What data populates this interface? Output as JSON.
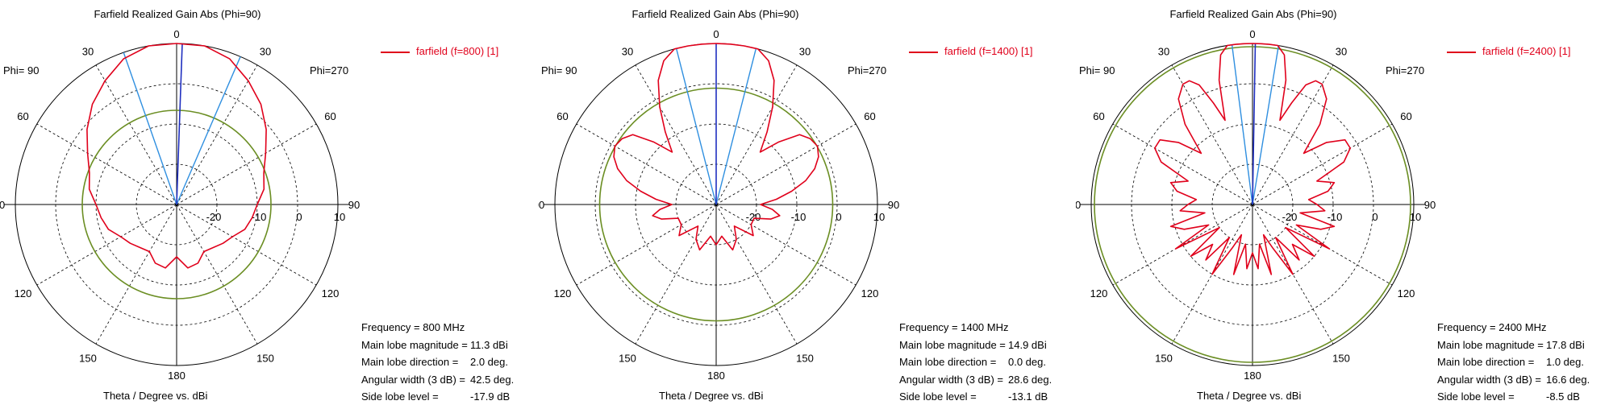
{
  "chart_data": [
    {
      "type": "polar",
      "title": "Farfield Realized Gain Abs (Phi=90)",
      "xlabel": "Theta / Degree vs. dBi",
      "phi_left": "Phi= 90",
      "phi_right": "Phi=270",
      "angle_labels": [
        "0",
        "30",
        "60",
        "90",
        "120",
        "150",
        "180"
      ],
      "radial_ticks": [
        -20,
        -10,
        0,
        10
      ],
      "radial_tick_labels": [
        "-20",
        "-10",
        "0",
        "10"
      ],
      "rlim": [
        -30,
        10
      ],
      "legend": "farfield (f=800) [1]",
      "colors": {
        "pattern": "#e0001b",
        "threshold": "#6b8e23",
        "main_dir": "#1f2fbf",
        "beam_edges": "#2f8fe0"
      },
      "pattern": {
        "theta": [
          0,
          10,
          20,
          30,
          40,
          50,
          60,
          70,
          80,
          90,
          100,
          110,
          120,
          130,
          140,
          150,
          160,
          170,
          180,
          190,
          200,
          210,
          220,
          230,
          240,
          250,
          260,
          270,
          280,
          290,
          300,
          310,
          320,
          330,
          340,
          350
        ],
        "gain": [
          11.3,
          10.6,
          8.5,
          5.5,
          2.5,
          -1,
          -4.5,
          -7,
          -8,
          -10,
          -11,
          -12,
          -14,
          -15,
          -16,
          -16.5,
          -14.5,
          -14,
          -17,
          -14,
          -14.5,
          -16.5,
          -16,
          -15,
          -14,
          -12,
          -11,
          -10,
          -8,
          -7,
          -4.5,
          -1,
          2.5,
          5.5,
          8.5,
          10.6
        ]
      },
      "threshold_dbi": -6.6,
      "main_lobe_direction_deg": 2.0,
      "beam_edges_deg": [
        -19.2,
        23.3
      ],
      "info": [
        {
          "key": "Frequency = 800 MHz",
          "value": ""
        },
        {
          "key": "Main lobe magnitude =",
          "value": "11.3 dBi"
        },
        {
          "key": "Main lobe direction =",
          "value": "2.0 deg."
        },
        {
          "key": "Angular width (3 dB) =",
          "value": "42.5 deg."
        },
        {
          "key": "Side lobe level =",
          "value": "-17.9 dB"
        }
      ]
    },
    {
      "type": "polar",
      "title": "Farfield Realized Gain Abs (Phi=90)",
      "xlabel": "Theta / Degree vs. dBi",
      "phi_left": "Phi= 90",
      "phi_right": "Phi=270",
      "angle_labels": [
        "0",
        "30",
        "60",
        "90",
        "120",
        "150",
        "180"
      ],
      "radial_ticks": [
        -20,
        -10,
        0,
        10
      ],
      "radial_tick_labels": [
        "-20",
        "-10",
        "0",
        "10"
      ],
      "rlim": [
        -30,
        10
      ],
      "legend": "farfield (f=1400) [1]",
      "colors": {
        "pattern": "#e0001b",
        "threshold": "#6b8e23",
        "main_dir": "#1f2fbf",
        "beam_edges": "#2f8fe0"
      },
      "pattern": {
        "theta": [
          0,
          5,
          10,
          15,
          20,
          25,
          30,
          35,
          40,
          45,
          50,
          55,
          60,
          65,
          70,
          75,
          80,
          85,
          90,
          95,
          100,
          105,
          110,
          120,
          130,
          140,
          150,
          160,
          170,
          180,
          190,
          200,
          210,
          220,
          230,
          240,
          250,
          255,
          260,
          265,
          270,
          275,
          280,
          285,
          290,
          295,
          300,
          305,
          310,
          315,
          320,
          325,
          330,
          335,
          340,
          345,
          350,
          355
        ],
        "gain": [
          14.9,
          14.5,
          13.2,
          11,
          8,
          4,
          -2,
          -8,
          -13,
          -8,
          -3,
          -1.5,
          -1,
          -2,
          -4,
          -7,
          -11,
          -15,
          -19,
          -16,
          -14,
          -16,
          -20,
          -20,
          -18,
          -23,
          -20,
          -18,
          -22,
          -20,
          -22,
          -18,
          -20,
          -23,
          -18,
          -20,
          -20,
          -16,
          -14,
          -16,
          -19,
          -15,
          -11,
          -7,
          -4,
          -2,
          -1,
          -1.5,
          -3,
          -8,
          -13,
          -8,
          -2,
          4,
          8,
          11,
          13.2,
          14.5
        ]
      },
      "threshold_dbi": -1.1,
      "main_lobe_direction_deg": 0.0,
      "beam_edges_deg": [
        -14.3,
        14.3
      ],
      "info": [
        {
          "key": "Frequency = 1400 MHz",
          "value": ""
        },
        {
          "key": "Main lobe magnitude =",
          "value": "14.9 dBi"
        },
        {
          "key": "Main lobe direction =",
          "value": "0.0 deg."
        },
        {
          "key": "Angular width (3 dB) =",
          "value": "28.6 deg."
        },
        {
          "key": "Side lobe level =",
          "value": "-13.1 dB"
        }
      ]
    },
    {
      "type": "polar",
      "title": "Farfield Realized Gain Abs (Phi=90)",
      "xlabel": "Theta / Degree vs. dBi",
      "phi_left": "Phi= 90",
      "phi_right": "Phi=270",
      "angle_labels": [
        "0",
        "30",
        "60",
        "90",
        "120",
        "150",
        "180"
      ],
      "radial_ticks": [
        -20,
        -10,
        0,
        10
      ],
      "radial_tick_labels": [
        "-20",
        "-10",
        "0",
        "10"
      ],
      "rlim": [
        -30,
        10
      ],
      "legend": "farfield (f=2400) [1]",
      "colors": {
        "pattern": "#e0001b",
        "threshold": "#6b8e23",
        "main_dir": "#1f2fbf",
        "beam_edges": "#2f8fe0"
      },
      "pattern": {
        "theta": [
          0,
          3,
          6,
          9,
          12,
          15,
          18,
          21,
          24,
          27,
          30,
          35,
          40,
          45,
          50,
          55,
          60,
          65,
          70,
          75,
          80,
          85,
          90,
          95,
          100,
          105,
          110,
          115,
          120,
          125,
          130,
          135,
          140,
          145,
          150,
          155,
          160,
          165,
          170,
          175,
          180,
          185,
          190,
          195,
          200,
          205,
          210,
          215,
          220,
          225,
          230,
          235,
          240,
          245,
          250,
          255,
          260,
          265,
          270,
          275,
          280,
          285,
          290,
          295,
          300,
          305,
          310,
          315,
          320,
          325,
          330,
          333,
          336,
          339,
          342,
          345,
          348,
          351,
          354,
          357
        ],
        "gain": [
          17.8,
          17.3,
          15.5,
          12.5,
          8,
          2,
          -8,
          -3,
          2.5,
          4.5,
          4.5,
          2,
          -4,
          -12,
          -6,
          -2,
          -2,
          -5,
          -13,
          -9,
          -11,
          -16,
          -14,
          -12,
          -18,
          -9,
          -12,
          -18,
          -8,
          -20,
          -10,
          -16,
          -12,
          -20,
          -10,
          -18,
          -22,
          -12,
          -20,
          -14,
          -18,
          -14,
          -20,
          -12,
          -22,
          -18,
          -10,
          -20,
          -12,
          -16,
          -10,
          -20,
          -8,
          -18,
          -12,
          -9,
          -18,
          -12,
          -14,
          -16,
          -11,
          -9,
          -13,
          -5,
          -2,
          -2,
          -6,
          -12,
          -4,
          2,
          4.5,
          4.5,
          2.5,
          -3,
          -8,
          2,
          8,
          12.5,
          15.5,
          17.3
        ]
      },
      "threshold_dbi": 9.2,
      "main_lobe_direction_deg": 1.0,
      "beam_edges_deg": [
        -7.3,
        9.3
      ],
      "info": [
        {
          "key": "Frequency = 2400 MHz",
          "value": ""
        },
        {
          "key": "Main lobe magnitude =",
          "value": "17.8 dBi"
        },
        {
          "key": "Main lobe direction =",
          "value": "1.0 deg."
        },
        {
          "key": "Angular width (3 dB) =",
          "value": "16.6 deg."
        },
        {
          "key": "Side lobe level =",
          "value": "-8.5 dB"
        }
      ]
    }
  ]
}
